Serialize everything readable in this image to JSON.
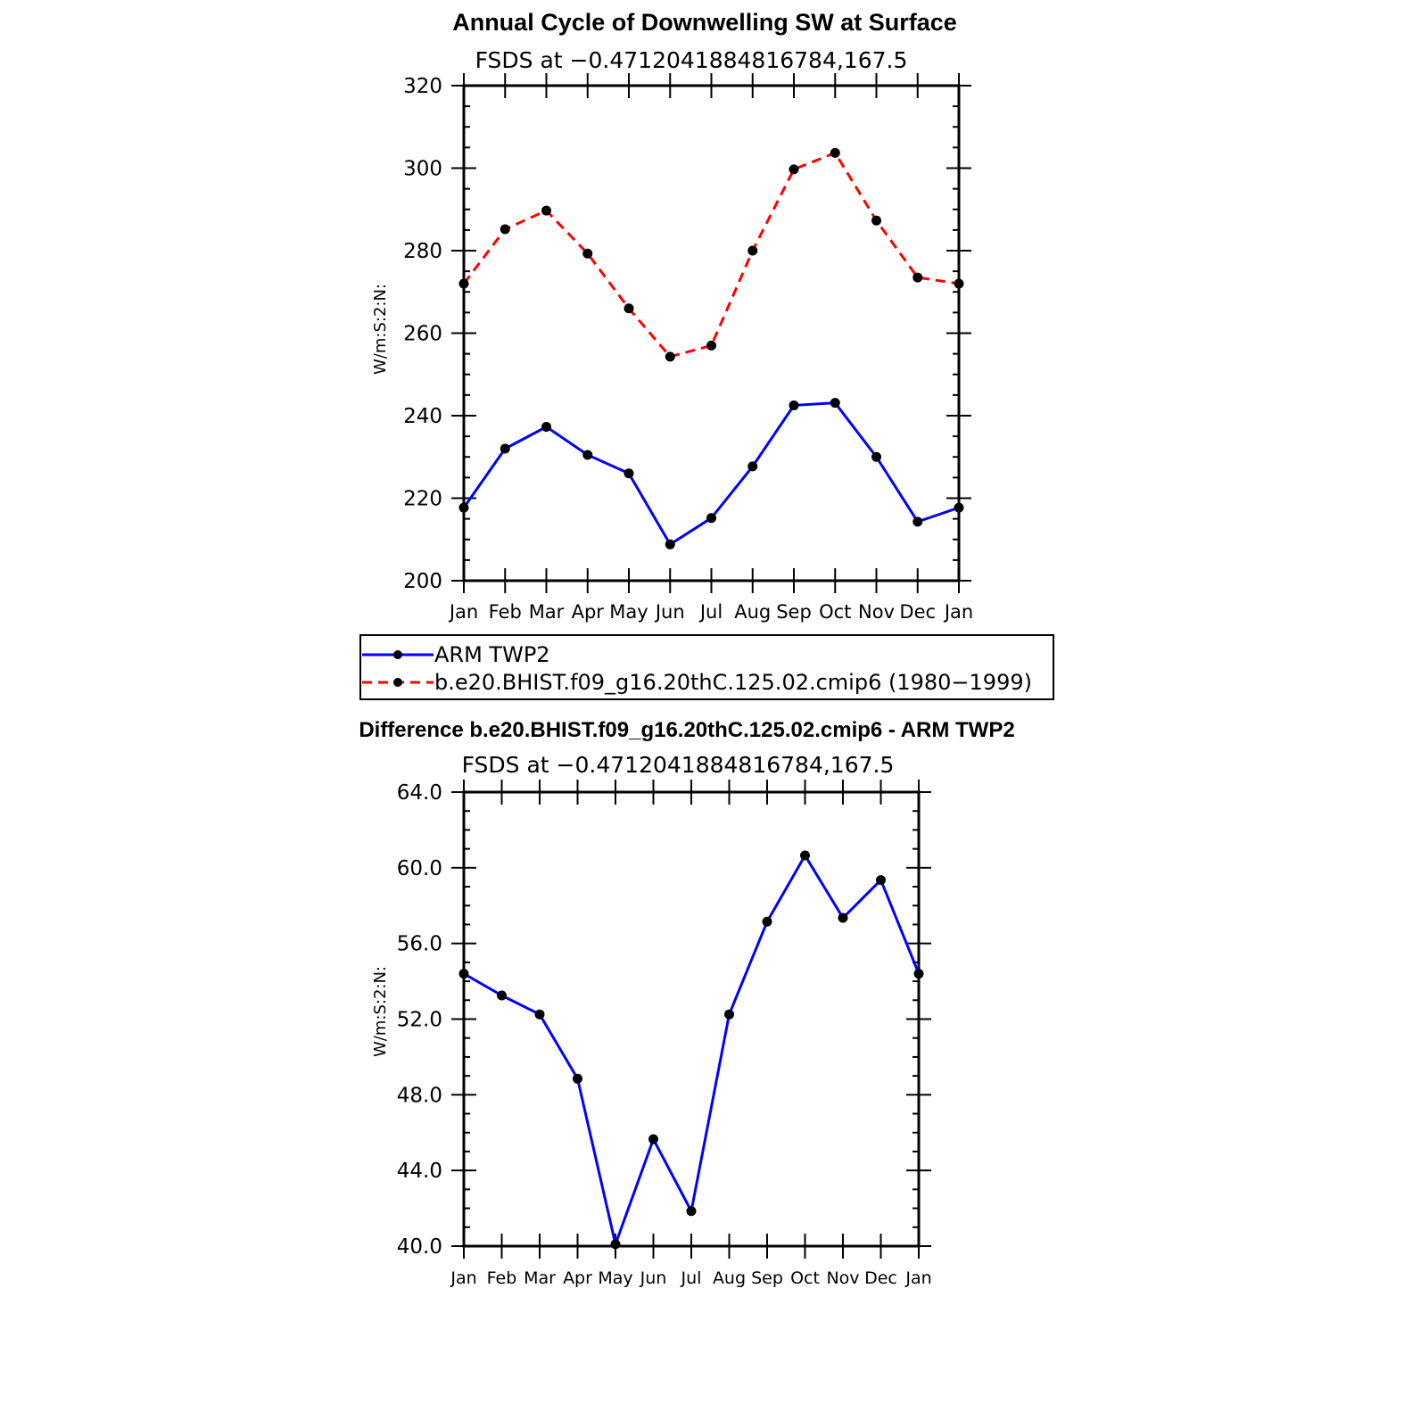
{
  "chart_data": [
    {
      "type": "line",
      "title": "Annual Cycle of Downwelling SW at Surface",
      "subtitle": "FSDS at −0.4712041884816784,167.5",
      "ylabel": "W/m:S:2:N:",
      "ylim": [
        200,
        320
      ],
      "yticks": [
        "200",
        "220",
        "240",
        "260",
        "280",
        "300",
        "320"
      ],
      "categories": [
        "Jan",
        "Feb",
        "Mar",
        "Apr",
        "May",
        "Jun",
        "Jul",
        "Aug",
        "Sep",
        "Oct",
        "Nov",
        "Dec",
        "Jan"
      ],
      "series": [
        {
          "name": "ARM TWP2",
          "color": "#0000ff",
          "dash": "solid",
          "values": [
            217.7,
            232.0,
            237.3,
            230.5,
            226.0,
            208.8,
            215.2,
            227.7,
            242.5,
            243.1,
            230.0,
            214.3,
            217.7
          ]
        },
        {
          "name": "b.e20.BHIST.f09_g16.20thC.125.02.cmip6 (1980−1999)",
          "color": "#ff0000",
          "dash": "dashed",
          "values": [
            272.0,
            285.2,
            289.7,
            279.3,
            266.0,
            254.3,
            257.0,
            280.0,
            299.7,
            303.7,
            287.3,
            273.5,
            272.0
          ]
        }
      ],
      "legend": "bottom"
    },
    {
      "type": "line",
      "title": "Difference b.e20.BHIST.f09_g16.20thC.125.02.cmip6 - ARM TWP2",
      "subtitle": "FSDS at −0.4712041884816784,167.5",
      "ylabel": "W/m:S:2:N:",
      "ylim": [
        40,
        64
      ],
      "yticks": [
        "40.0",
        "44.0",
        "48.0",
        "52.0",
        "56.0",
        "60.0",
        "64.0"
      ],
      "categories": [
        "Jan",
        "Feb",
        "Mar",
        "Apr",
        "May",
        "Jun",
        "Jul",
        "Aug",
        "Sep",
        "Oct",
        "Nov",
        "Dec",
        "Jan"
      ],
      "series": [
        {
          "color": "#0000ff",
          "dash": "solid",
          "values": [
            54.4,
            53.25,
            52.25,
            48.85,
            40.1,
            45.65,
            41.85,
            52.25,
            57.15,
            60.65,
            57.35,
            59.35,
            54.4
          ]
        }
      ]
    }
  ]
}
